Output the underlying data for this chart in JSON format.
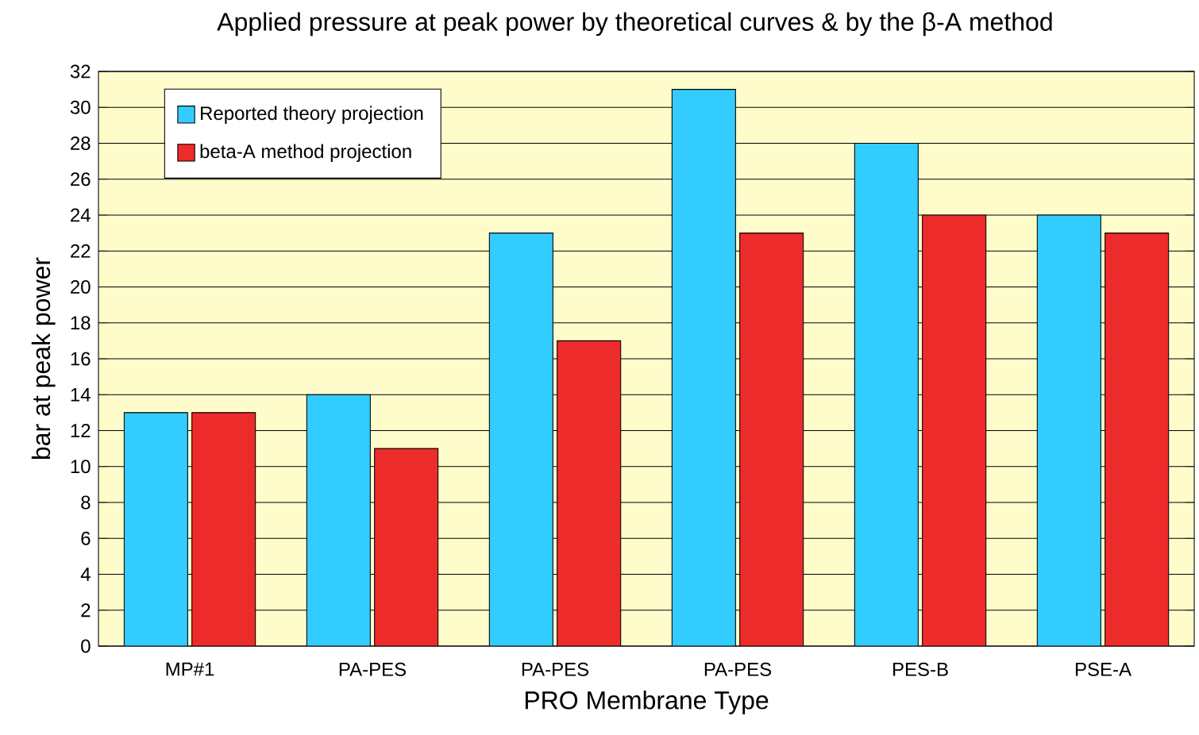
{
  "chart_data": {
    "type": "bar",
    "title": "Applied pressure at peak power by theoretical curves & by the  β-A  method",
    "xlabel": "PRO Membrane Type",
    "ylabel": "bar at peak power",
    "categories": [
      "MP#1",
      "PA-PES",
      "PA-PES",
      "PA-PES",
      "PES-B",
      "PSE-A"
    ],
    "series": [
      {
        "name": "Reported theory projection",
        "color": "#33ccff",
        "values": [
          13,
          14,
          23,
          31,
          28,
          24
        ]
      },
      {
        "name": "beta-A method projection",
        "color": "#ee2b2b",
        "values": [
          13,
          11,
          17,
          23,
          24,
          23
        ]
      }
    ],
    "ylim": [
      0,
      32
    ],
    "yticks": [
      0,
      2,
      4,
      6,
      8,
      10,
      12,
      14,
      16,
      18,
      20,
      22,
      24,
      26,
      28,
      30,
      32
    ],
    "grid": "y",
    "legend": "top left"
  }
}
